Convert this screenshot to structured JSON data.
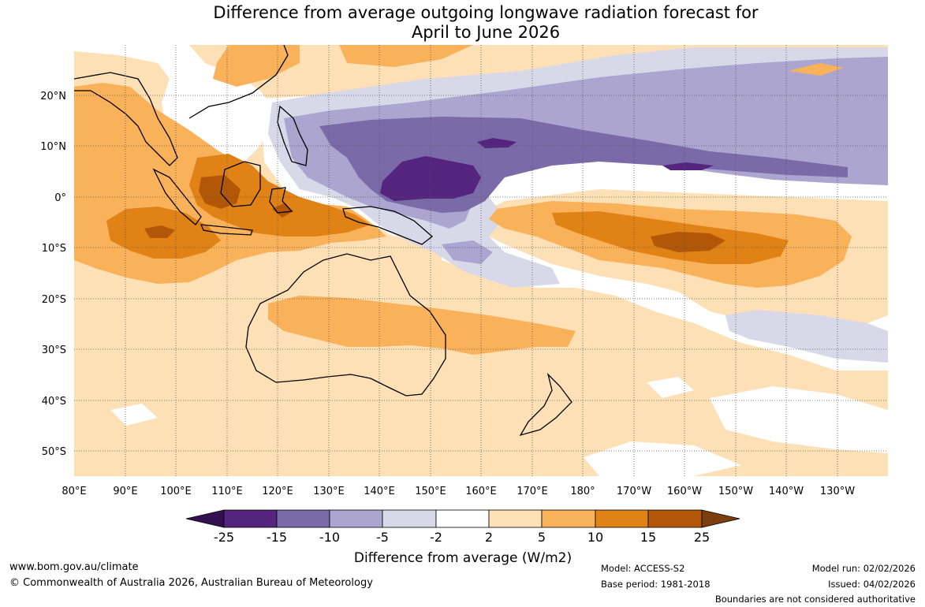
{
  "title_line1": "Difference from average outgoing longwave radiation forecast for",
  "title_line2": "April to June 2026",
  "lat_labels": [
    "20°N",
    "10°N",
    "0°",
    "10°S",
    "20°S",
    "30°S",
    "40°S",
    "50°S"
  ],
  "lon_labels": [
    "80°E",
    "90°E",
    "100°E",
    "110°E",
    "120°E",
    "130°E",
    "140°E",
    "150°E",
    "160°E",
    "170°E",
    "180°",
    "170°W",
    "160°W",
    "150°W",
    "140°W",
    "130°W"
  ],
  "colorbar": {
    "ticks": [
      "-25",
      "-15",
      "-10",
      "-5",
      "-2",
      "2",
      "5",
      "10",
      "15",
      "25"
    ],
    "colors": [
      "#33104f",
      "#54247f",
      "#7a6aa8",
      "#aca5cf",
      "#d8d8e9",
      "#ffffff",
      "#fde0b5",
      "#f9b15a",
      "#e08216",
      "#b15707",
      "#7a3e0f"
    ],
    "label": "Difference from average (W/m2)"
  },
  "footer": {
    "website": "www.bom.gov.au/climate",
    "copyright": "© Commonwealth of Australia 2026, Australian Bureau of Meteorology",
    "model": "Model: ACCESS-S2",
    "base_period": "Base period: 1981-2018",
    "model_run": "Model run: 02/02/2026",
    "issued": "Issued: 04/02/2026",
    "disclaimer": "Boundaries are not considered authoritative"
  }
}
